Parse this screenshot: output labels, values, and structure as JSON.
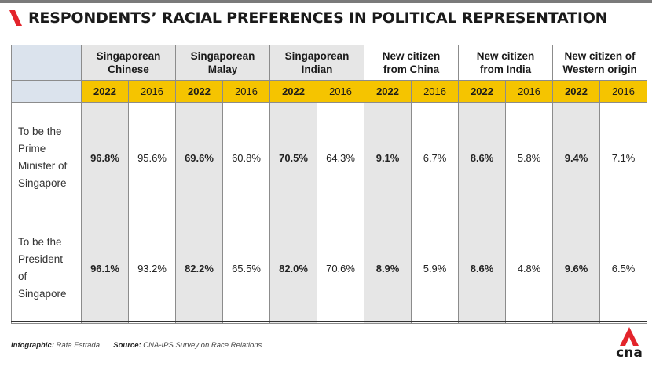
{
  "header": {
    "title": "RESPONDENTS’ RACIAL PREFERENCES IN POLITICAL REPRESENTATION",
    "accent_color": "#e3242b"
  },
  "chart_data": {
    "type": "table",
    "groups": [
      {
        "line1": "Singaporean",
        "line2": "Chinese"
      },
      {
        "line1": "Singaporean",
        "line2": "Malay"
      },
      {
        "line1": "Singaporean",
        "line2": "Indian"
      },
      {
        "line1": "New citizen",
        "line2": "from China"
      },
      {
        "line1": "New citizen",
        "line2": "from India"
      },
      {
        "line1": "New citizen of",
        "line2": "Western origin"
      }
    ],
    "years": [
      "2022",
      "2016"
    ],
    "rows": [
      {
        "label_lines": [
          "To be the",
          "Prime",
          "Minister of",
          "Singapore"
        ],
        "values": [
          "96.8%",
          "95.6%",
          "69.6%",
          "60.8%",
          "70.5%",
          "64.3%",
          "9.1%",
          "6.7%",
          "8.6%",
          "5.8%",
          "9.4%",
          "7.1%"
        ]
      },
      {
        "label_lines": [
          "To be the",
          "President",
          "of",
          "Singapore"
        ],
        "values": [
          "96.1%",
          "93.2%",
          "82.2%",
          "65.5%",
          "82.0%",
          "70.6%",
          "8.9%",
          "5.9%",
          "8.6%",
          "4.8%",
          "9.6%",
          "6.5%"
        ]
      }
    ],
    "colors": {
      "year_band": "#f5c400",
      "shade_2022": "#e6e6e6",
      "corner": "#dbe3ed"
    }
  },
  "footer": {
    "credit_label": "Infographic:",
    "credit_value": "Rafa Estrada",
    "source_label": "Source:",
    "source_value": "CNA-IPS Survey on Race Relations"
  },
  "logo": {
    "text": "cna",
    "color": "#e3242b",
    "icon": "cna-logo-icon"
  }
}
